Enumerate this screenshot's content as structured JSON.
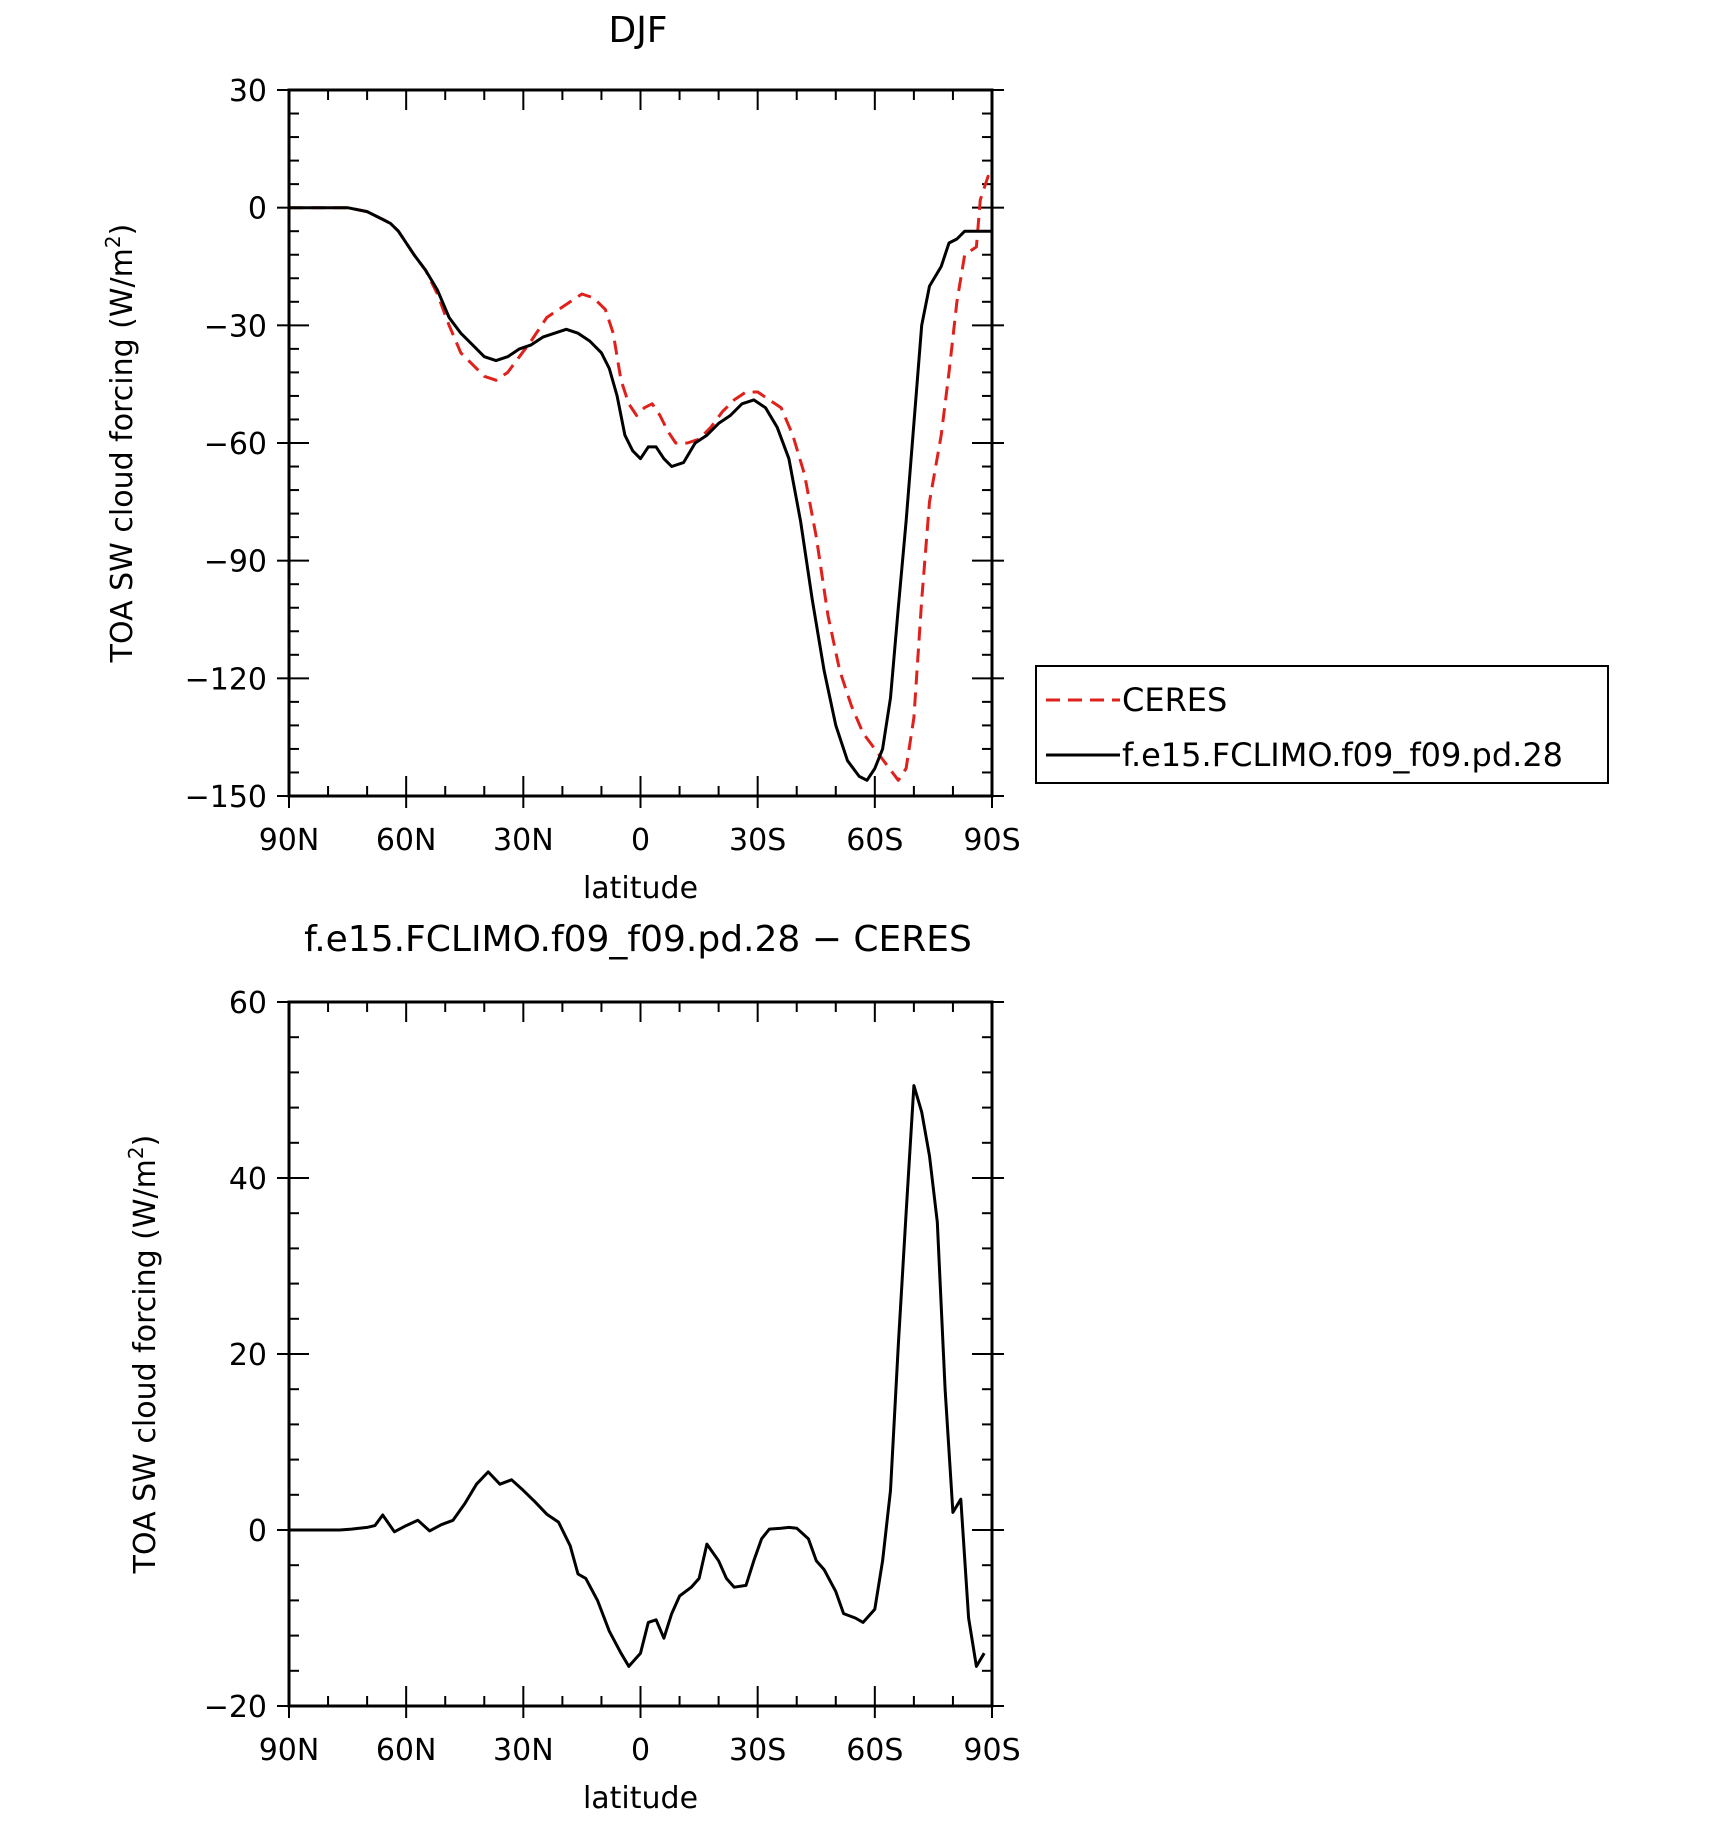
{
  "chart_data": [
    {
      "type": "line",
      "title": "DJF",
      "xlabel": "latitude",
      "ylabel": "TOA SW cloud forcing (W/m",
      "ylabel_sup": "2",
      "ylabel_close": ")",
      "xlim": [
        90,
        -90
      ],
      "ylim": [
        -150,
        30
      ],
      "xticks": [
        90,
        60,
        30,
        0,
        -30,
        -60,
        -90
      ],
      "xtick_labels": [
        "90N",
        "60N",
        "30N",
        "0",
        "30S",
        "60S",
        "90S"
      ],
      "yticks": [
        30,
        0,
        -30,
        -60,
        -90,
        -120,
        -150
      ],
      "ytick_labels": [
        "30",
        "0",
        "−30",
        "−60",
        "−90",
        "−120",
        "−150"
      ],
      "legend": {
        "placement": "right",
        "entries": [
          "CERES",
          "f.e15.FCLIMO.f09_f09.pd.28"
        ]
      },
      "series": [
        {
          "name": "CERES",
          "color": "#e0201b",
          "dash": true,
          "points": [
            [
              90,
              0
            ],
            [
              80,
              0
            ],
            [
              75,
              0
            ],
            [
              70,
              -1
            ],
            [
              68,
              -2
            ],
            [
              66,
              -3
            ],
            [
              64,
              -4
            ],
            [
              62,
              -6
            ],
            [
              58,
              -12
            ],
            [
              55,
              -16
            ],
            [
              52,
              -22
            ],
            [
              49,
              -30
            ],
            [
              46,
              -37
            ],
            [
              43,
              -40
            ],
            [
              40,
              -43
            ],
            [
              37,
              -44
            ],
            [
              34,
              -42
            ],
            [
              31,
              -38
            ],
            [
              28,
              -34
            ],
            [
              24,
              -28
            ],
            [
              21,
              -26
            ],
            [
              18,
              -24
            ],
            [
              15,
              -22
            ],
            [
              12,
              -23
            ],
            [
              9,
              -26
            ],
            [
              7,
              -32
            ],
            [
              5,
              -44
            ],
            [
              3,
              -50
            ],
            [
              1,
              -53
            ],
            [
              -1,
              -51
            ],
            [
              -3,
              -50
            ],
            [
              -5,
              -53
            ],
            [
              -7,
              -57
            ],
            [
              -9,
              -60
            ],
            [
              -12,
              -60
            ],
            [
              -15,
              -59
            ],
            [
              -18,
              -56
            ],
            [
              -21,
              -52
            ],
            [
              -24,
              -49
            ],
            [
              -27,
              -47
            ],
            [
              -30,
              -47
            ],
            [
              -33,
              -49
            ],
            [
              -36,
              -51
            ],
            [
              -39,
              -58
            ],
            [
              -42,
              -68
            ],
            [
              -45,
              -84
            ],
            [
              -48,
              -104
            ],
            [
              -51,
              -118
            ],
            [
              -54,
              -127
            ],
            [
              -57,
              -134
            ],
            [
              -60,
              -138
            ],
            [
              -63,
              -142
            ],
            [
              -66,
              -146
            ],
            [
              -68,
              -143
            ],
            [
              -70,
              -130
            ],
            [
              -72,
              -100
            ],
            [
              -74,
              -75
            ],
            [
              -77,
              -58
            ],
            [
              -79,
              -42
            ],
            [
              -81,
              -24
            ],
            [
              -83,
              -12
            ],
            [
              -86,
              -10
            ],
            [
              -87,
              2
            ],
            [
              -89,
              8
            ],
            [
              -90,
              7
            ]
          ]
        },
        {
          "name": "f.e15.FCLIMO.f09_f09.pd.28",
          "color": "#000000",
          "dash": false,
          "points": [
            [
              90,
              0
            ],
            [
              80,
              0
            ],
            [
              75,
              0
            ],
            [
              70,
              -1
            ],
            [
              68,
              -2
            ],
            [
              66,
              -3
            ],
            [
              64,
              -4
            ],
            [
              62,
              -6
            ],
            [
              58,
              -12
            ],
            [
              55,
              -16
            ],
            [
              52,
              -21
            ],
            [
              49,
              -28
            ],
            [
              46,
              -32
            ],
            [
              43,
              -35
            ],
            [
              40,
              -38
            ],
            [
              37,
              -39
            ],
            [
              34,
              -38
            ],
            [
              31,
              -36
            ],
            [
              28,
              -35
            ],
            [
              25,
              -33
            ],
            [
              22,
              -32
            ],
            [
              19,
              -31
            ],
            [
              16,
              -32
            ],
            [
              13,
              -34
            ],
            [
              10,
              -37
            ],
            [
              8,
              -41
            ],
            [
              6,
              -48
            ],
            [
              4,
              -58
            ],
            [
              2,
              -62
            ],
            [
              0,
              -64
            ],
            [
              -2,
              -61
            ],
            [
              -4,
              -61
            ],
            [
              -6,
              -64
            ],
            [
              -8,
              -66
            ],
            [
              -11,
              -65
            ],
            [
              -14,
              -60
            ],
            [
              -17,
              -58
            ],
            [
              -20,
              -55
            ],
            [
              -23,
              -53
            ],
            [
              -26,
              -50
            ],
            [
              -29,
              -49
            ],
            [
              -32,
              -51
            ],
            [
              -35,
              -56
            ],
            [
              -38,
              -64
            ],
            [
              -41,
              -80
            ],
            [
              -44,
              -100
            ],
            [
              -47,
              -118
            ],
            [
              -50,
              -132
            ],
            [
              -53,
              -141
            ],
            [
              -56,
              -145
            ],
            [
              -58,
              -146
            ],
            [
              -60,
              -143
            ],
            [
              -62,
              -138
            ],
            [
              -64,
              -125
            ],
            [
              -66,
              -102
            ],
            [
              -68,
              -80
            ],
            [
              -70,
              -55
            ],
            [
              -72,
              -30
            ],
            [
              -74,
              -20
            ],
            [
              -77,
              -15
            ],
            [
              -79,
              -9
            ],
            [
              -81,
              -8
            ],
            [
              -83,
              -6
            ],
            [
              -86,
              -6
            ],
            [
              -88,
              -6
            ],
            [
              -90,
              -6
            ]
          ]
        }
      ]
    },
    {
      "type": "line",
      "title": "f.e15.FCLIMO.f09_f09.pd.28 − CERES",
      "xlabel": "latitude",
      "ylabel": "TOA SW cloud forcing (W/m",
      "ylabel_sup": "2",
      "ylabel_close": ")",
      "xlim": [
        90,
        -90
      ],
      "ylim": [
        -20,
        60
      ],
      "xticks": [
        90,
        60,
        30,
        0,
        -30,
        -60,
        -90
      ],
      "xtick_labels": [
        "90N",
        "60N",
        "30N",
        "0",
        "30S",
        "60S",
        "90S"
      ],
      "yticks": [
        60,
        40,
        20,
        0,
        -20
      ],
      "ytick_labels": [
        "60",
        "40",
        "20",
        "0",
        "−20"
      ],
      "series": [
        {
          "name": "",
          "color": "#000000",
          "dash": false,
          "points": [
            [
              90,
              0
            ],
            [
              80,
              0
            ],
            [
              77,
              0
            ],
            [
              74,
              0.1
            ],
            [
              72,
              0.2
            ],
            [
              70,
              0.3
            ],
            [
              68,
              0.5
            ],
            [
              66,
              1.7
            ],
            [
              63,
              -0.2
            ],
            [
              60,
              0.5
            ],
            [
              57,
              1.1
            ],
            [
              54,
              -0.1
            ],
            [
              51,
              0.6
            ],
            [
              48,
              1.1
            ],
            [
              45,
              3
            ],
            [
              42,
              5.2
            ],
            [
              39,
              6.6
            ],
            [
              36,
              5.2
            ],
            [
              33,
              5.7
            ],
            [
              30,
              4.5
            ],
            [
              27,
              3.2
            ],
            [
              24,
              1.8
            ],
            [
              21,
              0.9
            ],
            [
              18,
              -1.8
            ],
            [
              16,
              -5
            ],
            [
              14,
              -5.5
            ],
            [
              11,
              -8
            ],
            [
              8,
              -11.5
            ],
            [
              5,
              -14
            ],
            [
              3,
              -15.5
            ],
            [
              0,
              -14
            ],
            [
              -2,
              -10.5
            ],
            [
              -4,
              -10.2
            ],
            [
              -6,
              -12.3
            ],
            [
              -8,
              -9.5
            ],
            [
              -10,
              -7.5
            ],
            [
              -13,
              -6.5
            ],
            [
              -15,
              -5.5
            ],
            [
              -17,
              -1.6
            ],
            [
              -20,
              -3.5
            ],
            [
              -22,
              -5.5
            ],
            [
              -24,
              -6.5
            ],
            [
              -27,
              -6.3
            ],
            [
              -29,
              -3.5
            ],
            [
              -31,
              -1
            ],
            [
              -33,
              0.1
            ],
            [
              -36,
              0.2
            ],
            [
              -38,
              0.3
            ],
            [
              -40,
              0.2
            ],
            [
              -43,
              -1
            ],
            [
              -45,
              -3.5
            ],
            [
              -47,
              -4.5
            ],
            [
              -50,
              -7
            ],
            [
              -52,
              -9.5
            ],
            [
              -55,
              -10
            ],
            [
              -57,
              -10.5
            ],
            [
              -60,
              -9
            ],
            [
              -62,
              -3.5
            ],
            [
              -64,
              4.5
            ],
            [
              -66,
              21
            ],
            [
              -68,
              36
            ],
            [
              -70,
              50.5
            ],
            [
              -72,
              47.5
            ],
            [
              -74,
              42.5
            ],
            [
              -76,
              35
            ],
            [
              -78,
              16
            ],
            [
              -80,
              2
            ],
            [
              -82,
              3.5
            ],
            [
              -84,
              -10
            ],
            [
              -86,
              -15.5
            ],
            [
              -88,
              -14
            ]
          ]
        }
      ]
    }
  ]
}
